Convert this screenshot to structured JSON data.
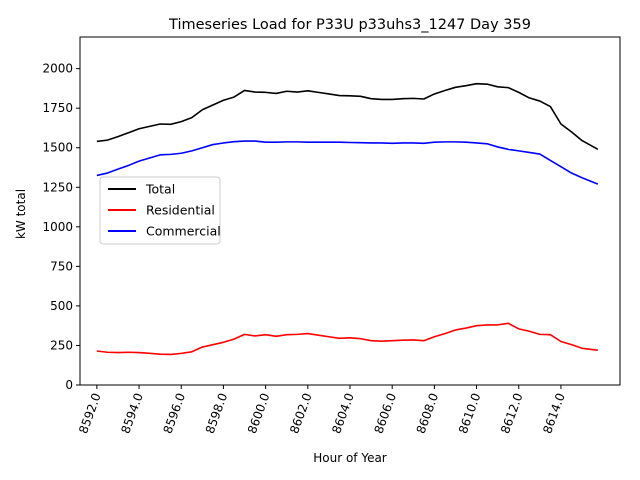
{
  "chart_data": {
    "type": "line",
    "title": "Timeseries Load for P33U p33uhs3_1247  Day 359",
    "xlabel": "Hour of Year",
    "ylabel": "kW total",
    "xlim": [
      8591.2,
      8616.8
    ],
    "ylim": [
      0,
      2200
    ],
    "x_ticks": [
      8592,
      8594,
      8596,
      8598,
      8600,
      8602,
      8604,
      8606,
      8608,
      8610,
      8612,
      8614
    ],
    "x_tick_labels": [
      "8592.0",
      "8594.0",
      "8596.0",
      "8598.0",
      "8600.0",
      "8602.0",
      "8604.0",
      "8606.0",
      "8608.0",
      "8610.0",
      "8612.0",
      "8614.0"
    ],
    "y_ticks": [
      0,
      250,
      500,
      750,
      1000,
      1250,
      1500,
      1750,
      2000
    ],
    "y_tick_labels": [
      "0",
      "250",
      "500",
      "750",
      "1000",
      "1250",
      "1500",
      "1750",
      "2000"
    ],
    "grid": false,
    "legend_position": "center-left",
    "x": [
      8592.0,
      8592.5,
      8593.0,
      8593.5,
      8594.0,
      8594.5,
      8595.0,
      8595.5,
      8596.0,
      8596.5,
      8597.0,
      8597.5,
      8598.0,
      8598.5,
      8599.0,
      8599.5,
      8600.0,
      8600.5,
      8601.0,
      8601.5,
      8602.0,
      8602.5,
      8603.0,
      8603.5,
      8604.0,
      8604.5,
      8605.0,
      8605.5,
      8606.0,
      8606.5,
      8607.0,
      8607.5,
      8608.0,
      8608.5,
      8609.0,
      8609.5,
      8610.0,
      8610.5,
      8611.0,
      8611.5,
      8612.0,
      8612.5,
      8613.0,
      8613.5,
      8614.0,
      8614.5,
      8615.0,
      8615.75
    ],
    "series": [
      {
        "name": "Total",
        "color": "#000000",
        "values": [
          1540,
          1548,
          1570,
          1595,
          1620,
          1635,
          1650,
          1648,
          1665,
          1690,
          1740,
          1770,
          1800,
          1820,
          1862,
          1852,
          1850,
          1843,
          1857,
          1852,
          1860,
          1850,
          1840,
          1830,
          1828,
          1825,
          1810,
          1805,
          1805,
          1810,
          1812,
          1808,
          1840,
          1862,
          1882,
          1892,
          1905,
          1902,
          1885,
          1880,
          1850,
          1815,
          1795,
          1760,
          1650,
          1600,
          1545,
          1490
        ]
      },
      {
        "name": "Residential",
        "color": "#ff0000",
        "values": [
          215,
          207,
          205,
          207,
          205,
          200,
          195,
          193,
          200,
          210,
          240,
          255,
          270,
          290,
          320,
          310,
          318,
          308,
          318,
          320,
          325,
          315,
          305,
          295,
          298,
          293,
          280,
          277,
          280,
          283,
          285,
          280,
          305,
          325,
          348,
          360,
          375,
          380,
          380,
          390,
          355,
          340,
          320,
          318,
          275,
          255,
          232,
          220
        ]
      },
      {
        "name": "Commercial",
        "color": "#0000ff",
        "values": [
          1325,
          1340,
          1365,
          1388,
          1415,
          1435,
          1455,
          1458,
          1465,
          1480,
          1500,
          1520,
          1530,
          1538,
          1542,
          1542,
          1535,
          1535,
          1537,
          1537,
          1535,
          1535,
          1535,
          1535,
          1533,
          1532,
          1530,
          1530,
          1528,
          1530,
          1530,
          1528,
          1535,
          1537,
          1537,
          1535,
          1530,
          1525,
          1505,
          1490,
          1480,
          1470,
          1460,
          1420,
          1380,
          1340,
          1310,
          1270
        ]
      }
    ]
  }
}
